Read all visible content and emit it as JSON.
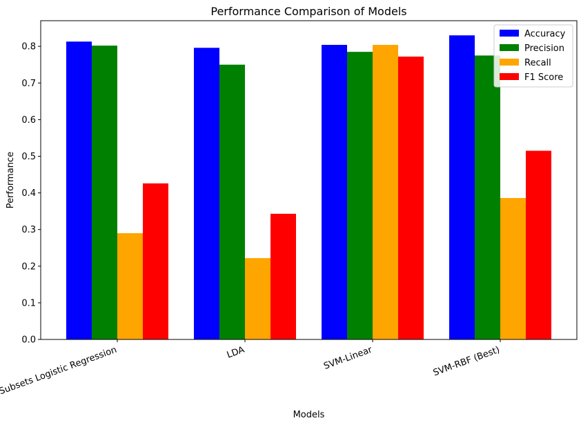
{
  "chart_data": {
    "type": "bar",
    "title": "Performance Comparison of Models",
    "xlabel": "Models",
    "ylabel": "Performance",
    "categories": [
      "All-Subsets Logistic Regression",
      "LDA",
      "SVM-Linear",
      "SVM-RBF (Best)"
    ],
    "series": [
      {
        "name": "Accuracy",
        "color": "#0000ff",
        "values": [
          0.813,
          0.796,
          0.804,
          0.83
        ]
      },
      {
        "name": "Precision",
        "color": "#008000",
        "values": [
          0.802,
          0.75,
          0.785,
          0.775
        ]
      },
      {
        "name": "Recall",
        "color": "#ffa500",
        "values": [
          0.29,
          0.222,
          0.804,
          0.386
        ]
      },
      {
        "name": "F1 Score",
        "color": "#ff0000",
        "values": [
          0.426,
          0.343,
          0.772,
          0.515
        ]
      }
    ],
    "ylim": [
      0,
      0.87
    ],
    "yticks": [
      0.0,
      0.1,
      0.2,
      0.3,
      0.4,
      0.5,
      0.6,
      0.7,
      0.8
    ],
    "ytick_labels": [
      "0.0",
      "0.1",
      "0.2",
      "0.3",
      "0.4",
      "0.5",
      "0.6",
      "0.7",
      "0.8"
    ],
    "xtick_rotation": 20,
    "legend": "top-right",
    "grid": false
  }
}
